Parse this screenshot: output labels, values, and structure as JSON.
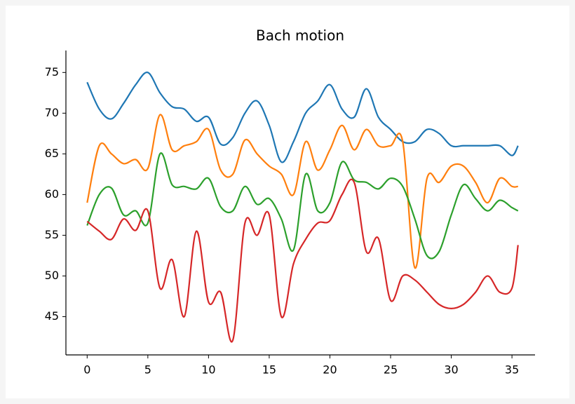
{
  "chart_data": {
    "type": "line",
    "title": "Bach motion",
    "x": [
      0,
      1,
      2,
      3,
      4,
      5,
      6,
      7,
      8,
      9,
      10,
      11,
      12,
      13,
      14,
      15,
      16,
      17,
      18,
      19,
      20,
      21,
      22,
      23,
      24,
      25,
      26,
      27,
      28,
      29,
      30,
      31,
      32,
      33,
      34,
      35,
      35.5
    ],
    "series": [
      {
        "color": "#1f77b4",
        "values": [
          73.8,
          70.5,
          69.3,
          71.2,
          73.5,
          75,
          72.5,
          70.8,
          70.5,
          69.0,
          69.5,
          66.2,
          67,
          70,
          71.5,
          68.5,
          64,
          66.5,
          70,
          71.5,
          73.5,
          70.5,
          69.5,
          73,
          69.5,
          68,
          66.5,
          66.5,
          68,
          67.5,
          66,
          66,
          66,
          66,
          66,
          64.8,
          66
        ]
      },
      {
        "color": "#ff7f0e",
        "values": [
          59,
          66,
          65,
          63.8,
          64.3,
          63.2,
          69.8,
          65.5,
          66,
          66.5,
          68,
          63,
          62.5,
          66.7,
          65,
          63.5,
          62.5,
          60,
          66.5,
          63,
          65.5,
          68.5,
          65.5,
          68,
          66,
          66,
          66.5,
          51,
          62,
          61.5,
          63.5,
          63.5,
          61.5,
          59,
          62,
          61,
          61
        ]
      },
      {
        "color": "#2ca02c",
        "values": [
          56.2,
          60,
          60.8,
          57.5,
          58,
          56.5,
          65,
          61.2,
          61,
          60.7,
          62,
          58.5,
          58,
          61,
          58.8,
          59.5,
          57,
          53.2,
          62.5,
          58,
          59,
          64,
          61.8,
          61.5,
          60.7,
          62,
          61,
          57,
          52.5,
          53,
          57.5,
          61.2,
          59.5,
          58,
          59.3,
          58.4,
          58
        ]
      },
      {
        "color": "#d62728",
        "values": [
          56.7,
          55.5,
          54.5,
          57,
          55.6,
          58,
          48.5,
          52,
          45,
          55.5,
          46.8,
          48,
          42.1,
          56.5,
          55,
          57.5,
          45,
          51.5,
          54.5,
          56.5,
          56.8,
          60,
          61.5,
          53,
          54.6,
          47,
          50,
          49.5,
          48,
          46.5,
          46,
          46.5,
          48,
          50,
          48,
          48.5,
          53.8
        ]
      }
    ],
    "xlim": [
      -1.75,
      36.9
    ],
    "ylim": [
      40.3,
      77.7
    ],
    "xticks": [
      0,
      5,
      10,
      15,
      20,
      25,
      30,
      35
    ],
    "yticks": [
      45,
      50,
      55,
      60,
      65,
      70,
      75
    ]
  }
}
